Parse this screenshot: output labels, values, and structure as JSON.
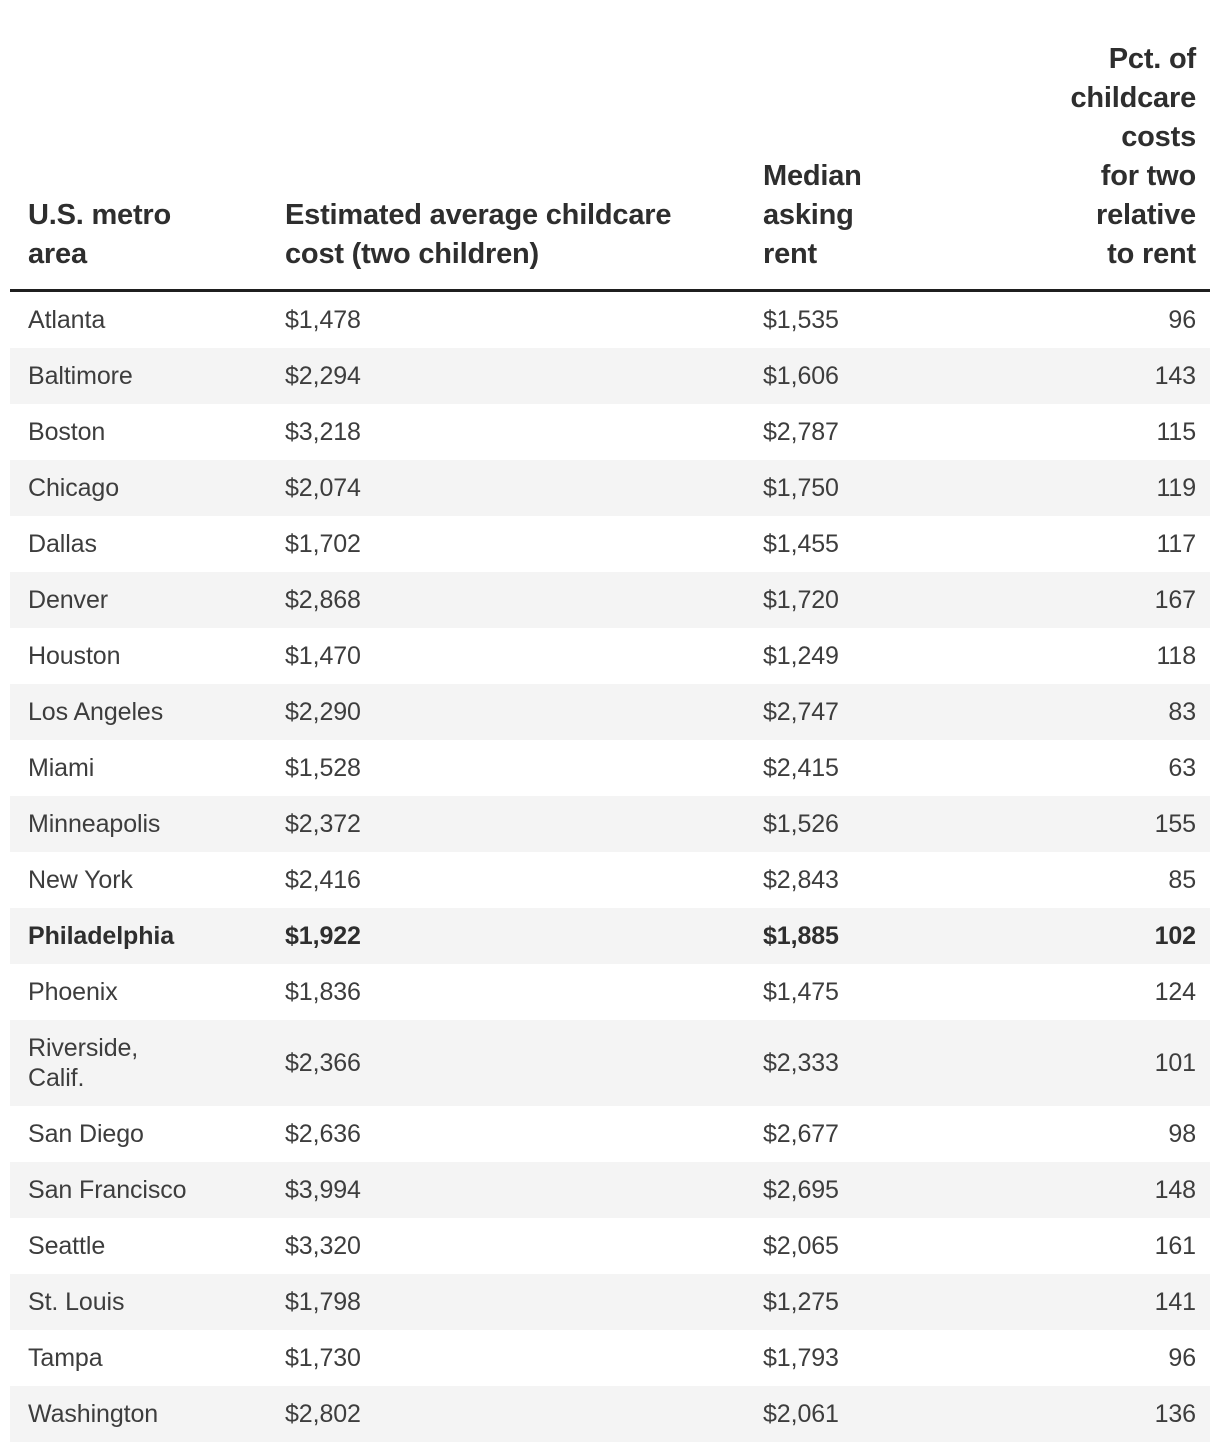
{
  "colors": {
    "background": "#ffffff",
    "row_stripe": "#f4f4f4",
    "header_rule": "#1f1f1f",
    "header_text": "#2e2e2e",
    "body_text": "#3d3d3d"
  },
  "chart_data": {
    "type": "table",
    "columns": [
      {
        "label": "U.S. metro\narea",
        "align": "left"
      },
      {
        "label": "Estimated average childcare\ncost (two children)",
        "align": "left"
      },
      {
        "label": "Median\nasking\nrent",
        "align": "left"
      },
      {
        "label": "Pct. of\nchildcare costs\nfor two relative\nto rent",
        "align": "right"
      }
    ],
    "rows": [
      {
        "metro": "Atlanta",
        "childcare_cost": "$1,478",
        "median_rent": "$1,535",
        "pct": 96,
        "highlight": false
      },
      {
        "metro": "Baltimore",
        "childcare_cost": "$2,294",
        "median_rent": "$1,606",
        "pct": 143,
        "highlight": false
      },
      {
        "metro": "Boston",
        "childcare_cost": "$3,218",
        "median_rent": "$2,787",
        "pct": 115,
        "highlight": false
      },
      {
        "metro": "Chicago",
        "childcare_cost": "$2,074",
        "median_rent": "$1,750",
        "pct": 119,
        "highlight": false
      },
      {
        "metro": "Dallas",
        "childcare_cost": "$1,702",
        "median_rent": "$1,455",
        "pct": 117,
        "highlight": false
      },
      {
        "metro": "Denver",
        "childcare_cost": "$2,868",
        "median_rent": "$1,720",
        "pct": 167,
        "highlight": false
      },
      {
        "metro": "Houston",
        "childcare_cost": "$1,470",
        "median_rent": "$1,249",
        "pct": 118,
        "highlight": false
      },
      {
        "metro": "Los Angeles",
        "childcare_cost": "$2,290",
        "median_rent": "$2,747",
        "pct": 83,
        "highlight": false
      },
      {
        "metro": "Miami",
        "childcare_cost": "$1,528",
        "median_rent": "$2,415",
        "pct": 63,
        "highlight": false
      },
      {
        "metro": "Minneapolis",
        "childcare_cost": "$2,372",
        "median_rent": "$1,526",
        "pct": 155,
        "highlight": false
      },
      {
        "metro": "New York",
        "childcare_cost": "$2,416",
        "median_rent": "$2,843",
        "pct": 85,
        "highlight": false
      },
      {
        "metro": "Philadelphia",
        "childcare_cost": "$1,922",
        "median_rent": "$1,885",
        "pct": 102,
        "highlight": true
      },
      {
        "metro": "Phoenix",
        "childcare_cost": "$1,836",
        "median_rent": "$1,475",
        "pct": 124,
        "highlight": false
      },
      {
        "metro": "Riverside,\nCalif.",
        "childcare_cost": "$2,366",
        "median_rent": "$2,333",
        "pct": 101,
        "highlight": false
      },
      {
        "metro": "San Diego",
        "childcare_cost": "$2,636",
        "median_rent": "$2,677",
        "pct": 98,
        "highlight": false
      },
      {
        "metro": "San Francisco",
        "childcare_cost": "$3,994",
        "median_rent": "$2,695",
        "pct": 148,
        "highlight": false
      },
      {
        "metro": "Seattle",
        "childcare_cost": "$3,320",
        "median_rent": "$2,065",
        "pct": 161,
        "highlight": false
      },
      {
        "metro": "St. Louis",
        "childcare_cost": "$1,798",
        "median_rent": "$1,275",
        "pct": 141,
        "highlight": false
      },
      {
        "metro": "Tampa",
        "childcare_cost": "$1,730",
        "median_rent": "$1,793",
        "pct": 96,
        "highlight": false
      },
      {
        "metro": "Washington",
        "childcare_cost": "$2,802",
        "median_rent": "$2,061",
        "pct": 136,
        "highlight": false
      }
    ]
  }
}
